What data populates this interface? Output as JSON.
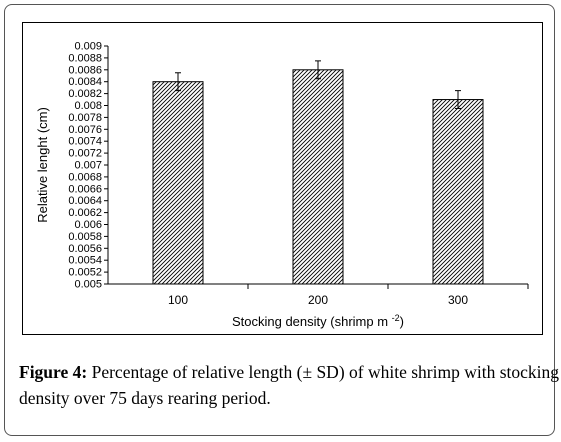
{
  "chart_data": {
    "type": "bar",
    "categories": [
      "100",
      "200",
      "300"
    ],
    "values": [
      0.0084,
      0.0086,
      0.0081
    ],
    "error": [
      0.00015,
      0.00015,
      0.00015
    ],
    "xlabel": "Stocking density (shrimp m",
    "xlabel_sup": "-2",
    "xlabel_end": ")",
    "ylabel": "Relative lenght (cm)",
    "ylim": [
      0.005,
      0.009
    ],
    "yticks": [
      "0.009",
      "0.0088",
      "0.0086",
      "0.0084",
      "0.0082",
      "0.008",
      "0.0078",
      "0.0076",
      "0.0074",
      "0.0072",
      "0.007",
      "0.0068",
      "0.0066",
      "0.0064",
      "0.0062",
      "0.006",
      "0.0058",
      "0.0056",
      "0.0054",
      "0.0052",
      "0.005"
    ],
    "grid": false,
    "bar_fill": "diagonal-hatch"
  },
  "caption": {
    "label": "Figure 4:",
    "text": " Percentage of relative length (± SD) of white shrimp with stocking density over 75 days rearing period."
  },
  "colors": {
    "frame_border": "#555555",
    "axis": "#000000",
    "bar_stroke": "#000000"
  }
}
